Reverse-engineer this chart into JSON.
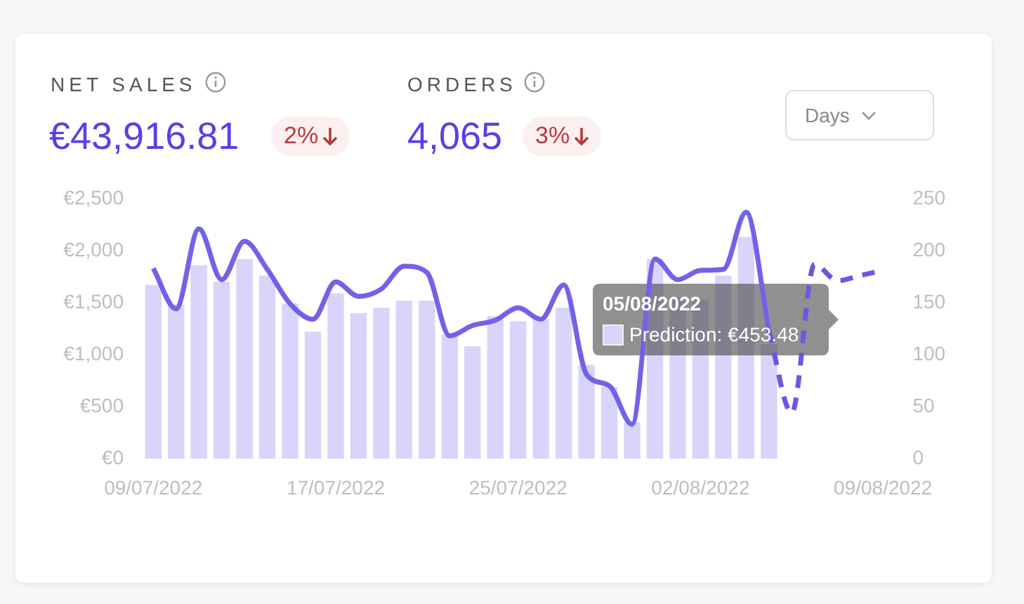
{
  "chart_data": {
    "type": "bar",
    "categories": [
      "09/07/2022",
      null,
      null,
      null,
      null,
      null,
      null,
      null,
      "17/07/2022",
      null,
      null,
      null,
      null,
      null,
      null,
      null,
      "25/07/2022",
      null,
      null,
      null,
      null,
      null,
      null,
      null,
      "02/08/2022",
      null,
      null,
      null,
      null,
      null,
      null,
      null,
      "09/08/2022"
    ],
    "series": [
      {
        "type": "bar",
        "color": "#d9d4f9",
        "values": [
          1670,
          1480,
          1860,
          1700,
          1920,
          1760,
          1490,
          1220,
          1590,
          1400,
          1450,
          1520,
          1520,
          1190,
          1080,
          1370,
          1320,
          1340,
          1450,
          900,
          690,
          350,
          1920,
          1550,
          1530,
          1760,
          2130,
          1100,
          null,
          null,
          null,
          null,
          null
        ]
      },
      {
        "type": "line",
        "axis": "y2",
        "color": "#7262e9",
        "line_style": "solid",
        "values": [
          183,
          144,
          221,
          172,
          209,
          182,
          149,
          134,
          170,
          156,
          163,
          185,
          179,
          118,
          128,
          133,
          145,
          134,
          167,
          81,
          70,
          33,
          192,
          172,
          181,
          182,
          237,
          123,
          null,
          null,
          null,
          null,
          null
        ]
      },
      {
        "type": "line",
        "axis": "y2",
        "color": "#6a57e3",
        "line_style": "dashed",
        "values": [
          null,
          null,
          null,
          null,
          null,
          null,
          null,
          null,
          null,
          null,
          null,
          null,
          null,
          null,
          null,
          null,
          null,
          null,
          null,
          null,
          null,
          null,
          null,
          null,
          null,
          null,
          null,
          123,
          44,
          187,
          171,
          176,
          181
        ]
      }
    ],
    "ylim": [
      0,
      2500
    ],
    "yticks": [
      {
        "value": 0,
        "label": "€0"
      },
      {
        "value": 500,
        "label": "€500"
      },
      {
        "value": 1000,
        "label": "€1,000"
      },
      {
        "value": 1500,
        "label": "€1,500"
      },
      {
        "value": 2000,
        "label": "€2,000"
      },
      {
        "value": 2500,
        "label": "€2,500"
      }
    ],
    "y2lim": [
      0,
      250
    ],
    "y2ticks": [
      0,
      50,
      100,
      150,
      200,
      250
    ],
    "grid": false,
    "legend": false,
    "marker": "none",
    "annotations": [
      "NET SALES",
      "€43,916.81",
      "2%",
      "ORDERS",
      "4,065",
      "3%",
      "Days",
      "05/08/2022",
      "Prediction: €453.48"
    ]
  }
}
